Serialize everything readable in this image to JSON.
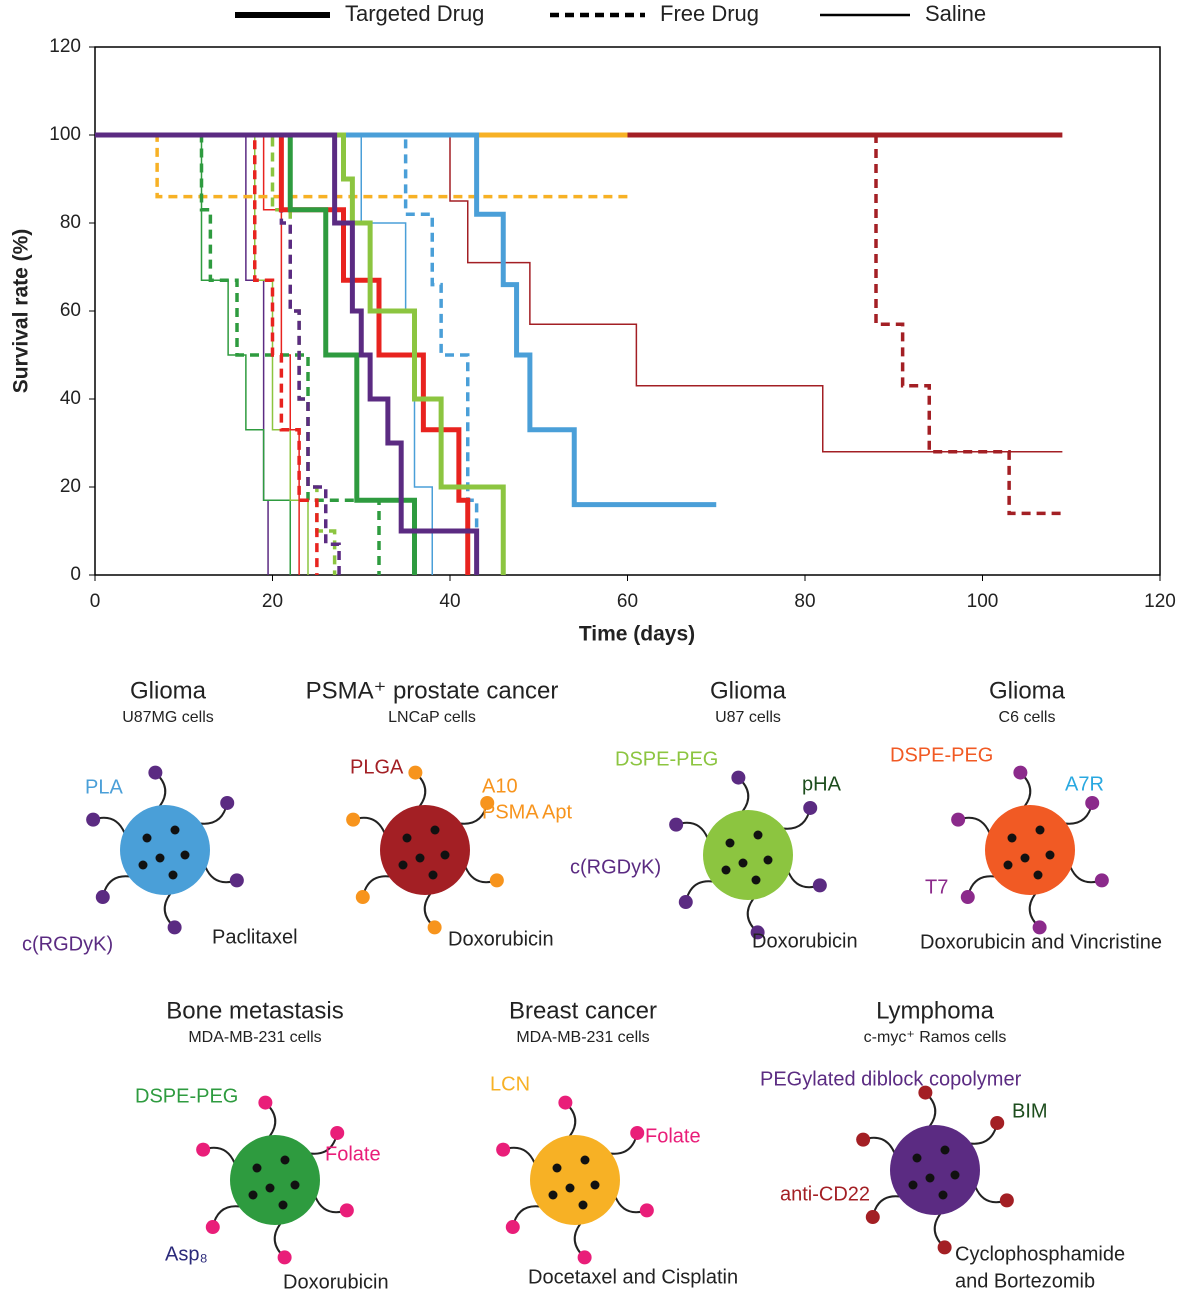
{
  "chart_data": {
    "type": "step-line",
    "ylabel": "Survival rate (%)",
    "xlabel": "Time (days)",
    "xlim": [
      0,
      120
    ],
    "ylim": [
      0,
      120
    ],
    "xticks": [
      0,
      20,
      40,
      60,
      80,
      100,
      120
    ],
    "yticks": [
      0,
      20,
      40,
      60,
      80,
      100,
      120
    ],
    "legend": [
      {
        "label": "Targeted Drug",
        "style": "targeted"
      },
      {
        "label": "Free Drug",
        "style": "free"
      },
      {
        "label": "Saline",
        "style": "saline"
      }
    ],
    "series": [
      {
        "style": "saline",
        "color": "#a31f24",
        "x": [
          0,
          40,
          42,
          49,
          61,
          82,
          109
        ],
        "values": [
          100,
          85,
          71,
          57,
          43,
          28,
          28
        ]
      },
      {
        "style": "saline",
        "color": "#4a9fd8",
        "x": [
          0,
          30,
          35,
          36,
          38
        ],
        "values": [
          100,
          80,
          60,
          20,
          0
        ]
      },
      {
        "style": "saline",
        "color": "#5b2b82",
        "x": [
          0,
          17,
          19,
          19.5
        ],
        "values": [
          100,
          67,
          17,
          0
        ]
      },
      {
        "style": "saline",
        "color": "#2e9b3f",
        "x": [
          0,
          12,
          15,
          17,
          19,
          22
        ],
        "values": [
          100,
          67,
          50,
          33,
          17,
          0
        ]
      },
      {
        "style": "saline",
        "color": "#8cc540",
        "x": [
          0,
          18,
          20,
          22,
          24
        ],
        "values": [
          100,
          67,
          33,
          17,
          0
        ]
      },
      {
        "style": "saline",
        "color": "#e8231f",
        "x": [
          0,
          19,
          21,
          22,
          23
        ],
        "values": [
          100,
          83,
          50,
          33,
          0
        ]
      },
      {
        "style": "free",
        "color": "#f7b125",
        "x": [
          0,
          7,
          60
        ],
        "values": [
          100,
          86,
          86
        ]
      },
      {
        "style": "free",
        "color": "#a31f24",
        "x": [
          0,
          88,
          91,
          94,
          103,
          109
        ],
        "values": [
          100,
          57,
          43,
          28,
          14,
          14
        ]
      },
      {
        "style": "free",
        "color": "#4a9fd8",
        "x": [
          0,
          35,
          38,
          39,
          42,
          43
        ],
        "values": [
          100,
          82,
          66,
          50,
          17,
          0
        ]
      },
      {
        "style": "free",
        "color": "#2e9b3f",
        "x": [
          0,
          12,
          13,
          16,
          24,
          32
        ],
        "values": [
          100,
          83,
          67,
          50,
          17,
          0
        ]
      },
      {
        "style": "free",
        "color": "#8cc540",
        "x": [
          0,
          20,
          22,
          23,
          24,
          25,
          27
        ],
        "values": [
          100,
          83,
          60,
          40,
          20,
          10,
          0
        ]
      },
      {
        "style": "free",
        "color": "#e8231f",
        "x": [
          0,
          18,
          20,
          21,
          23,
          25
        ],
        "values": [
          100,
          67,
          50,
          33,
          17,
          0
        ]
      },
      {
        "style": "free",
        "color": "#5b2b82",
        "x": [
          0,
          21,
          22,
          23,
          24,
          26,
          27.5
        ],
        "values": [
          100,
          80,
          60,
          40,
          20,
          7,
          0
        ]
      },
      {
        "style": "targeted",
        "color": "#f7b125",
        "x": [
          0,
          60
        ],
        "values": [
          100,
          100
        ]
      },
      {
        "style": "targeted",
        "color": "#a31f24",
        "x": [
          60,
          109
        ],
        "values": [
          100,
          100
        ]
      },
      {
        "style": "targeted",
        "color": "#4a9fd8",
        "x": [
          0,
          43,
          46,
          47.5,
          49,
          54,
          70
        ],
        "values": [
          100,
          82,
          66,
          50,
          33,
          16,
          16
        ]
      },
      {
        "style": "targeted",
        "color": "#e8231f",
        "x": [
          0,
          21,
          28,
          32,
          37,
          41,
          42
        ],
        "values": [
          100,
          83,
          67,
          50,
          33,
          17,
          0
        ]
      },
      {
        "style": "targeted",
        "color": "#2e9b3f",
        "x": [
          0,
          22,
          26,
          29.5,
          36
        ],
        "values": [
          100,
          83,
          50,
          17,
          0
        ]
      },
      {
        "style": "targeted",
        "color": "#8cc540",
        "x": [
          0,
          28,
          29,
          31,
          36,
          39,
          46
        ],
        "values": [
          100,
          90,
          80,
          60,
          40,
          20,
          0
        ]
      },
      {
        "style": "targeted",
        "color": "#5b2b82",
        "x": [
          0,
          27,
          29,
          30,
          31,
          33,
          34.5,
          43
        ],
        "values": [
          100,
          80,
          60,
          50,
          40,
          30,
          10,
          0
        ]
      }
    ]
  },
  "panels": [
    {
      "title": "Glioma",
      "subtitle": "U87MG cells",
      "labels": [
        "PLA",
        "c(RGDyK)",
        "Paclitaxel"
      ]
    },
    {
      "title": "PSMA⁺ prostate cancer",
      "subtitle": "LNCaP cells",
      "labels": [
        "PLGA",
        "A10",
        "PSMA Apt",
        "Doxorubicin"
      ]
    },
    {
      "title": "Glioma",
      "subtitle": "U87 cells",
      "labels": [
        "DSPE-PEG",
        "pHA",
        "c(RGDyK)",
        "Doxorubicin"
      ]
    },
    {
      "title": "Glioma",
      "subtitle": "C6 cells",
      "labels": [
        "DSPE-PEG",
        "A7R",
        "T7",
        "Doxorubicin and Vincristine"
      ]
    },
    {
      "title": "Bone metastasis",
      "subtitle": "MDA-MB-231 cells",
      "labels": [
        "DSPE-PEG",
        "Folate",
        "Asp₈",
        "Doxorubicin"
      ]
    },
    {
      "title": "Breast cancer",
      "subtitle": "MDA-MB-231 cells",
      "labels": [
        "LCN",
        "Folate",
        "Docetaxel and Cisplatin"
      ]
    },
    {
      "title": "Lymphoma",
      "subtitle": "c-myc⁺ Ramos cells",
      "labels": [
        "PEGylated diblock copolymer",
        "BIM",
        "anti-CD22",
        "Cyclophosphamide",
        "and Bortezomib"
      ]
    }
  ]
}
